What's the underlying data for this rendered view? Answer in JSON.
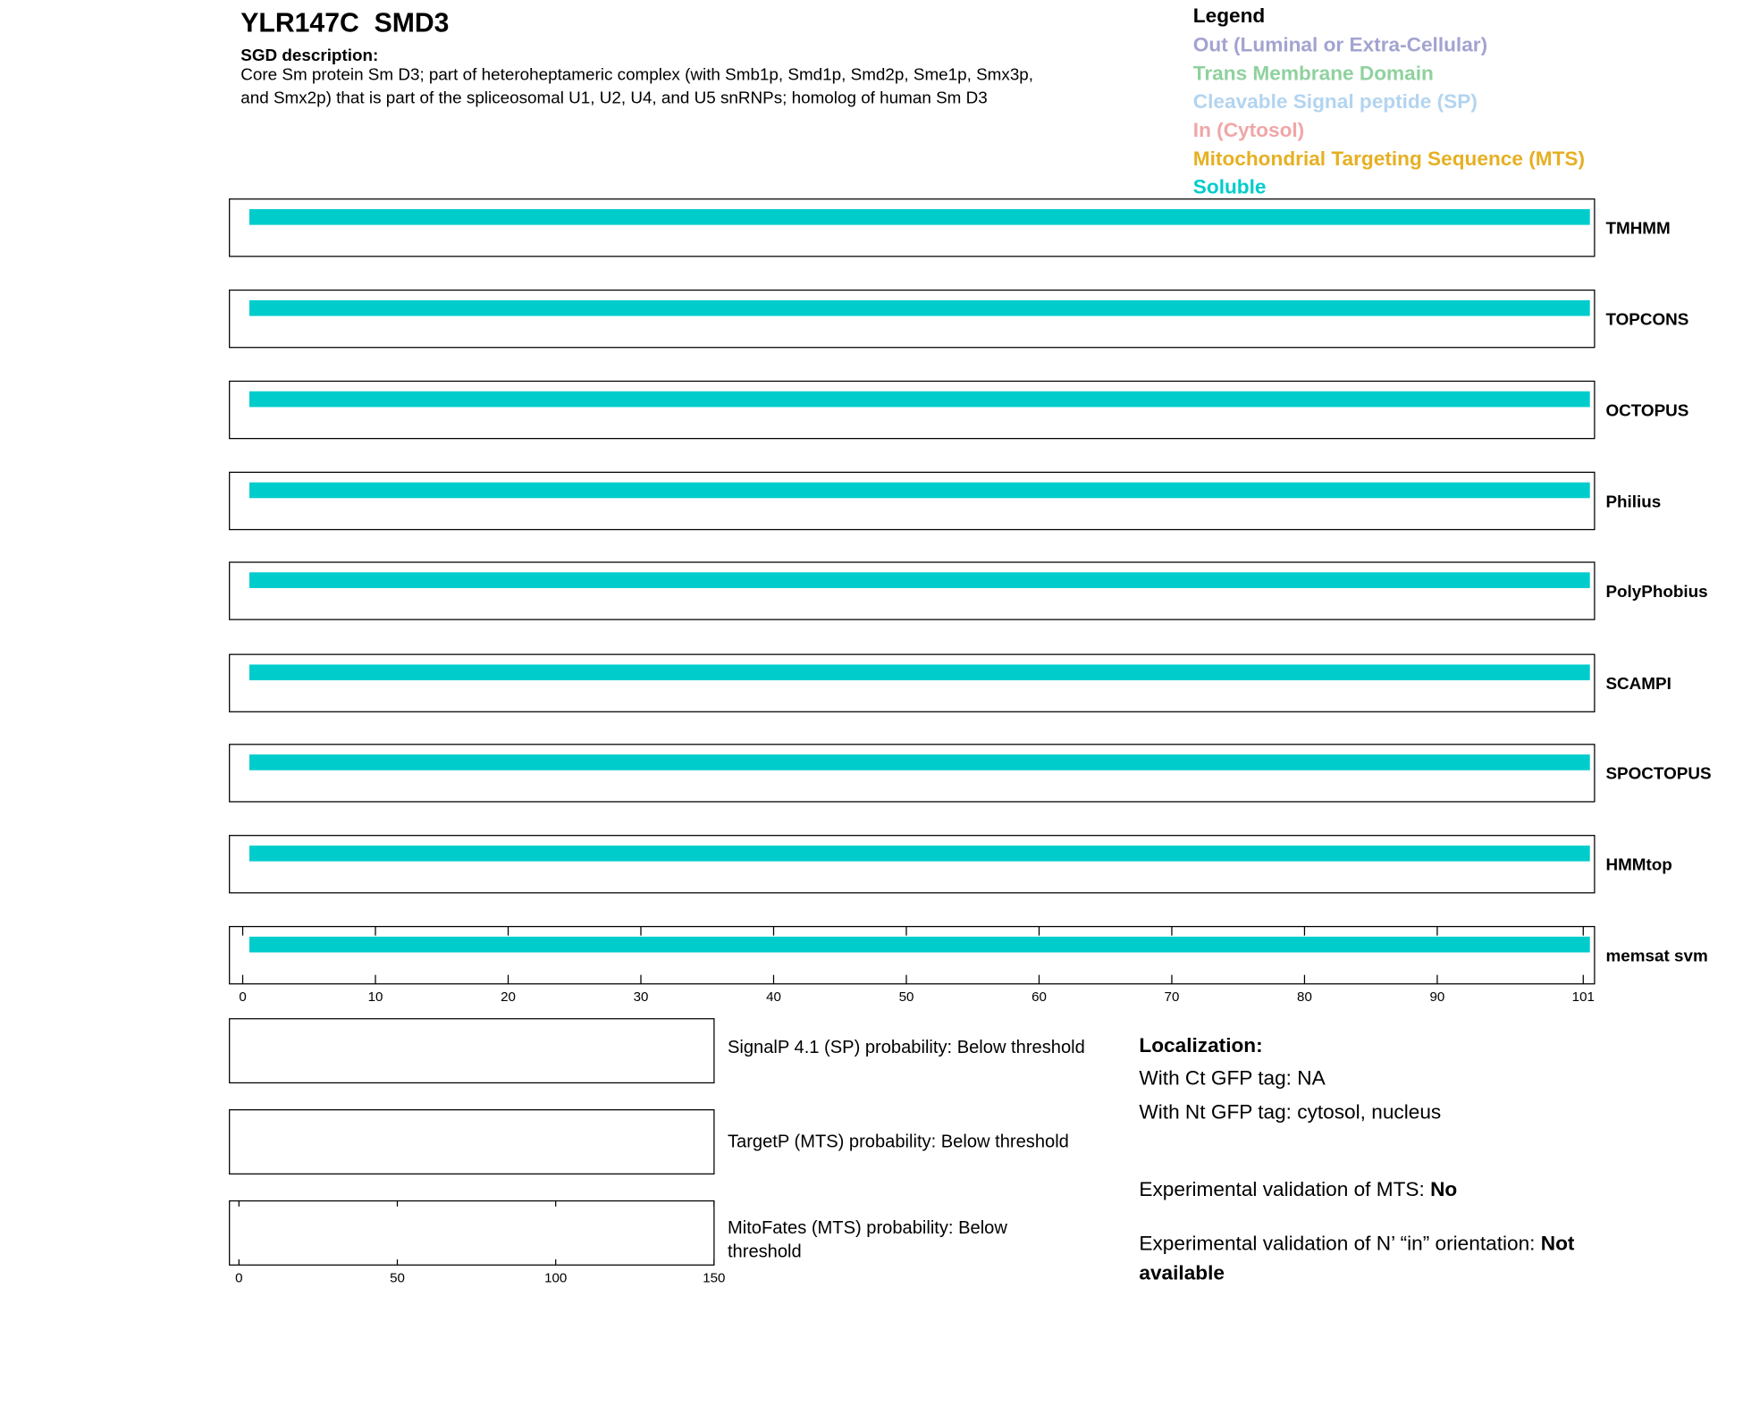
{
  "header": {
    "title": "YLR147C  SMD3",
    "subtitle": "SGD description:",
    "description": [
      "Core Sm protein Sm D3; part of heteroheptameric complex (with Smb1p, Smd1p, Smd2p, Sme1p, Smx3p,",
      "and Smx2p) that is part of the spliceosomal U1, U2, U4, and U5 snRNPs; homolog of human Sm D3"
    ]
  },
  "legend": {
    "title": "Legend",
    "items": [
      {
        "label": "Out (Luminal or Extra-Cellular)",
        "color": "#a3a3d1"
      },
      {
        "label": "Trans Membrane Domain",
        "color": "#8fd19e"
      },
      {
        "label": "Cleavable Signal peptide (SP)",
        "color": "#b3d4f0"
      },
      {
        "label": "In (Cytosol)",
        "color": "#f0a6a6"
      },
      {
        "label": "Mitochondrial Targeting Sequence (MTS)",
        "color": "#e6b023"
      },
      {
        "label": "Soluble",
        "color": "#00cccc"
      }
    ]
  },
  "chart_data": [
    {
      "type": "track",
      "categories": [
        "TMHMM",
        "TOPCONS",
        "OCTOPUS",
        "Philius",
        "PolyPhobius",
        "SCAMPI",
        "SPOCTOPUS",
        "HMMtop",
        "memsat svm"
      ],
      "series": [
        {
          "name": "Soluble",
          "color": "#00cccc",
          "start": [
            0.5,
            0.5,
            0.5,
            0.5,
            0.5,
            0.5,
            0.5,
            0.5,
            0.5
          ],
          "end": [
            101.5,
            101.5,
            101.5,
            101.5,
            101.5,
            101.5,
            101.5,
            101.5,
            101.5
          ]
        }
      ],
      "xlim": [
        -1,
        101.85
      ],
      "xticks": [
        0,
        10,
        20,
        30,
        40,
        50,
        60,
        70,
        80,
        90,
        101
      ]
    },
    {
      "type": "probability",
      "categories": [
        "SignalP 4.1 (SP) probability: Below threshold",
        "TargetP (MTS) probability: Below threshold",
        "MitoFates (MTS) probability: Below threshold"
      ],
      "xlim": [
        -3,
        150
      ],
      "xticks": [
        0,
        50,
        100,
        150
      ]
    }
  ],
  "localization": {
    "title": "Localization:",
    "ct": "With Ct GFP tag: NA",
    "nt": "With Nt GFP tag: cytosol, nucleus",
    "mts_label": "Experimental validation of MTS: ",
    "mts_value": "No",
    "orient_label": "Experimental validation of N’ “in” orientation: ",
    "orient_value": [
      "Not",
      "available"
    ]
  }
}
